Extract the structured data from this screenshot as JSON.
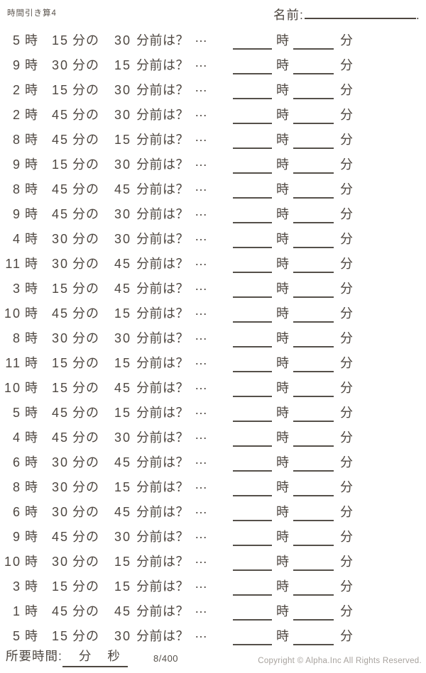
{
  "title": "時間引き算4",
  "name": {
    "label": "名前:",
    "line_end": "."
  },
  "units": {
    "hour": "時",
    "minute_of": "分の",
    "minutes_before": "分前は？",
    "ellipsis": "…",
    "answer_hour": "時",
    "answer_minute": "分"
  },
  "problems": [
    {
      "hour": "5",
      "minute": "15",
      "before": "30"
    },
    {
      "hour": "9",
      "minute": "30",
      "before": "15"
    },
    {
      "hour": "2",
      "minute": "15",
      "before": "30"
    },
    {
      "hour": "2",
      "minute": "45",
      "before": "30"
    },
    {
      "hour": "8",
      "minute": "45",
      "before": "15"
    },
    {
      "hour": "9",
      "minute": "15",
      "before": "30"
    },
    {
      "hour": "8",
      "minute": "45",
      "before": "45"
    },
    {
      "hour": "9",
      "minute": "45",
      "before": "30"
    },
    {
      "hour": "4",
      "minute": "30",
      "before": "30"
    },
    {
      "hour": "11",
      "minute": "30",
      "before": "45"
    },
    {
      "hour": "3",
      "minute": "15",
      "before": "45"
    },
    {
      "hour": "10",
      "minute": "45",
      "before": "15"
    },
    {
      "hour": "8",
      "minute": "30",
      "before": "30"
    },
    {
      "hour": "11",
      "minute": "15",
      "before": "15"
    },
    {
      "hour": "10",
      "minute": "15",
      "before": "45"
    },
    {
      "hour": "5",
      "minute": "45",
      "before": "15"
    },
    {
      "hour": "4",
      "minute": "45",
      "before": "30"
    },
    {
      "hour": "6",
      "minute": "30",
      "before": "45"
    },
    {
      "hour": "8",
      "minute": "30",
      "before": "15"
    },
    {
      "hour": "6",
      "minute": "30",
      "before": "45"
    },
    {
      "hour": "9",
      "minute": "45",
      "before": "30"
    },
    {
      "hour": "10",
      "minute": "30",
      "before": "15"
    },
    {
      "hour": "3",
      "minute": "15",
      "before": "15"
    },
    {
      "hour": "1",
      "minute": "45",
      "before": "45"
    },
    {
      "hour": "5",
      "minute": "15",
      "before": "30"
    }
  ],
  "footer": {
    "elapsed_label": "所要時間:",
    "elapsed_minute_unit": "分",
    "elapsed_second_unit": "秒",
    "page_number": "8/400",
    "copyright": "Copyright ©  Alpha.Inc All Rights Reserved."
  }
}
